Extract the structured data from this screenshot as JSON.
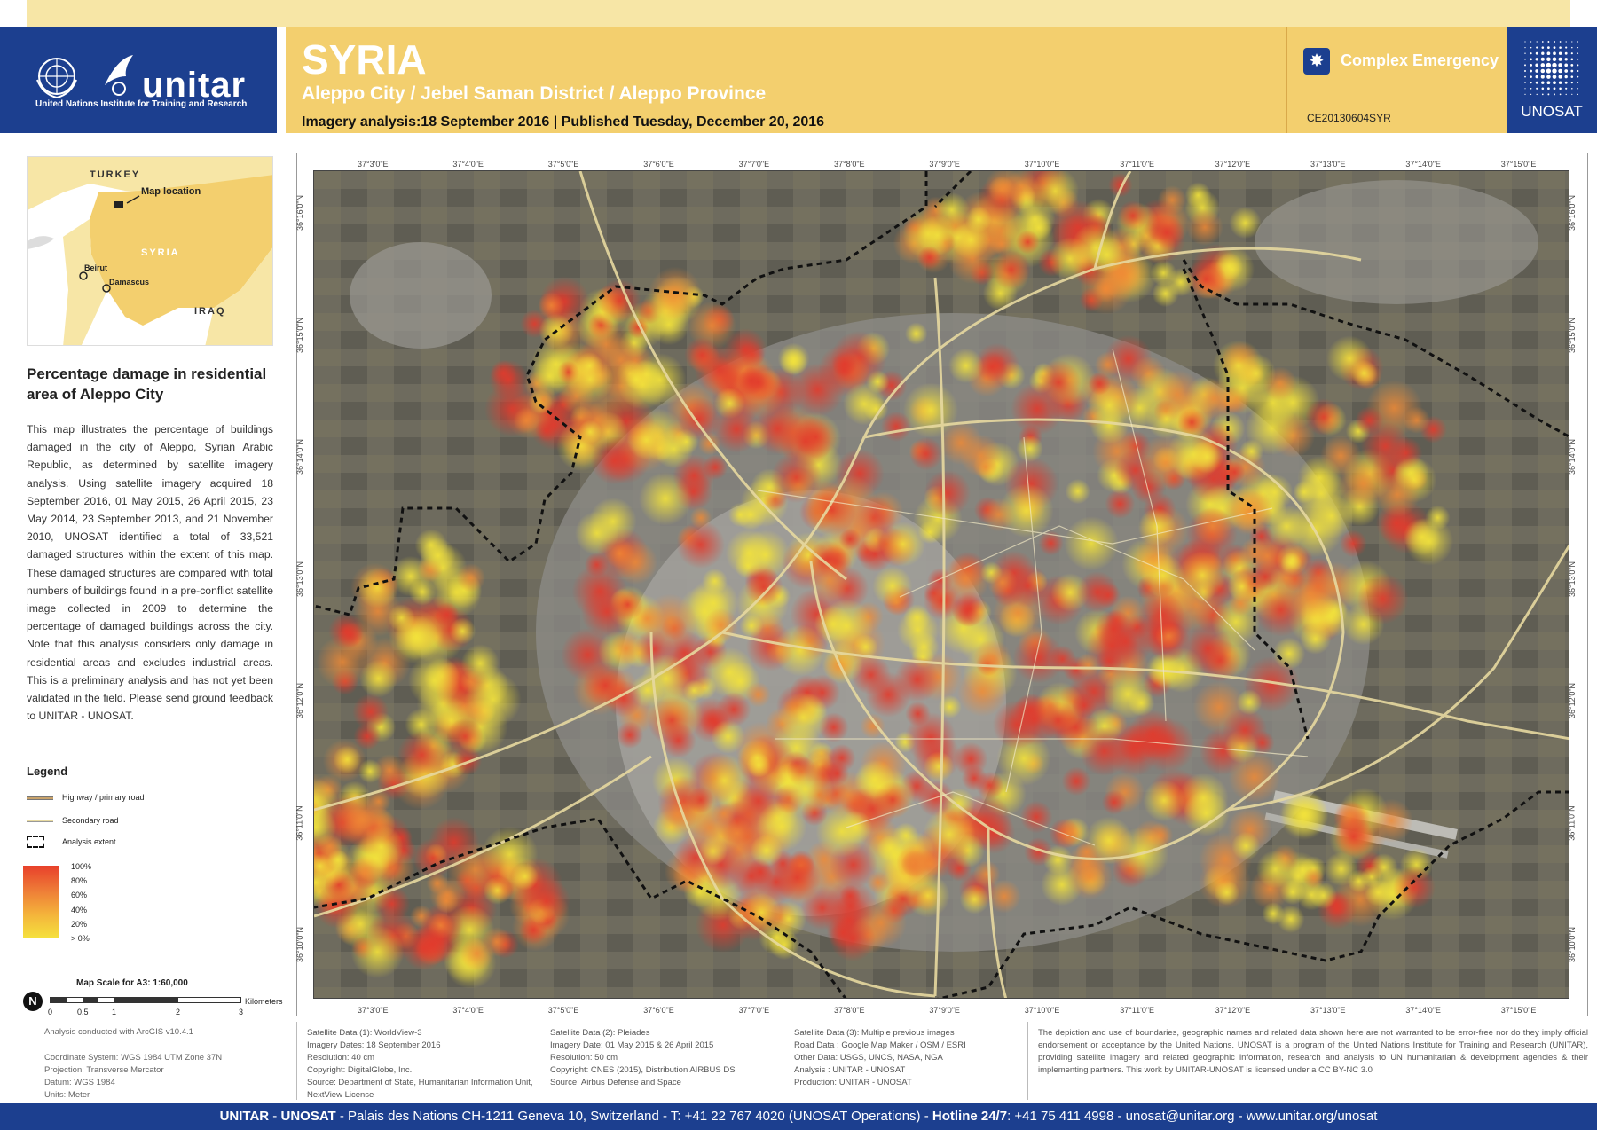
{
  "header": {
    "org_name": "unitar",
    "org_subtitle": "United Nations Institute for Training and Research",
    "country": "SYRIA",
    "location": "Aleppo City / Jebel Saman District / Aleppo Province",
    "dates": "Imagery analysis:18 September 2016 | Published Tuesday, December 20, 2016",
    "emergency_label": "Complex Emergency",
    "glide": "CE20130604SYR",
    "unosat_label": "UNOSAT"
  },
  "inset": {
    "turkey": "TURKEY",
    "syria": "SYRIA",
    "iraq": "IRAQ",
    "map_location": "Map location",
    "beirut": "Beirut",
    "damascus": "Damascus"
  },
  "panel": {
    "title": "Percentage damage in residential area of Aleppo City",
    "description": "This map illustrates the percentage of buildings damaged in the city of Aleppo, Syrian Arabic Republic, as determined by satellite imagery analysis. Using satellite imagery acquired 18 September 2016, 01 May 2015, 26 April 2015, 23 May 2014, 23 September 2013, and 21 November 2010, UNOSAT identified a total of 33,521 damaged structures within the extent of this map. These damaged structures are compared with total numbers of buildings found in a pre-conflict satellite image collected in 2009 to determine the percentage of damaged buildings across the city. Note that this analysis considers only damage in residential areas and excludes industrial areas. This is a preliminary analysis and has not yet been validated in the field. Please send ground feedback to UNITAR - UNOSAT."
  },
  "legend": {
    "title": "Legend",
    "highway": "Highway / primary road",
    "secondary": "Secondary road",
    "extent": "Analysis extent",
    "levels": [
      "100%",
      "80%",
      "60%",
      "40%",
      "20%",
      "> 0%"
    ]
  },
  "scale": {
    "title": "Map Scale for A3: 1:60,000",
    "labels": [
      "0",
      "0.5",
      "1",
      "2",
      "3"
    ],
    "unit": "Kilometers"
  },
  "tech": {
    "software": "Analysis conducted with ArcGIS v10.4.1",
    "coord": "Coordinate System: WGS 1984 UTM Zone 37N",
    "projection": "Projection: Transverse Mercator",
    "datum": "Datum: WGS 1984",
    "units": "Units: Meter"
  },
  "map": {
    "lon_ticks": [
      "37°3'0\"E",
      "37°4'0\"E",
      "37°5'0\"E",
      "37°6'0\"E",
      "37°7'0\"E",
      "37°8'0\"E",
      "37°9'0\"E",
      "37°10'0\"E",
      "37°11'0\"E",
      "37°12'0\"E",
      "37°13'0\"E",
      "37°14'0\"E",
      "37°15'0\"E"
    ],
    "lat_ticks": [
      "36°16'0\"N",
      "36°15'0\"N",
      "36°14'0\"N",
      "36°13'0\"N",
      "36°12'0\"N",
      "36°11'0\"N",
      "36°10'0\"N"
    ],
    "colors": {
      "high": "#e23a2c",
      "mid": "#f08a35",
      "low": "#f3e33b",
      "road": "#e7d9a0"
    }
  },
  "info": {
    "sat1": [
      "Satellite Data (1): WorldView-3",
      "Imagery Dates: 18 September 2016",
      "Resolution: 40 cm",
      "Copyright: DigitalGlobe, Inc.",
      "Source: Department of State, Humanitarian Information Unit,",
      "NextView License"
    ],
    "sat2": [
      "Satellite Data (2): Pleiades",
      "Imagery Date: 01 May 2015 & 26 April 2015",
      "Resolution: 50 cm",
      "Copyright: CNES (2015), Distribution AIRBUS DS",
      "Source: Airbus Defense and Space"
    ],
    "sat3": [
      "Satellite Data (3): Multiple previous images",
      "Road Data : Google Map Maker /  OSM / ESRI",
      "Other Data: USGS, UNCS, NASA, NGA",
      "Analysis : UNITAR - UNOSAT",
      "Production: UNITAR - UNOSAT"
    ],
    "disclaimer": "The depiction and use of boundaries, geographic names and related data shown here are not warranted to be error-free nor do they imply official endorsement or acceptance by the United Nations. UNOSAT is a program of the United Nations Institute for Training and Research (UNITAR), providing satellite imagery and related geographic information, research and analysis to UN humanitarian & development agencies & their implementing partners. This work by UNITAR-UNOSAT is licensed under a CC BY-NC 3.0"
  },
  "footer": {
    "org": "UNITAR",
    "sep1": " - ",
    "unosat": "UNOSAT",
    "address": " - Palais des Nations CH-1211 Geneva 10, Switzerland - T: +41 22 767 4020 (UNOSAT Operations) - ",
    "hotline_label": "Hotline 24/7",
    "hotline": ": +41 75 411 4998 - unosat@unitar.org - www.unitar.org/unosat"
  }
}
